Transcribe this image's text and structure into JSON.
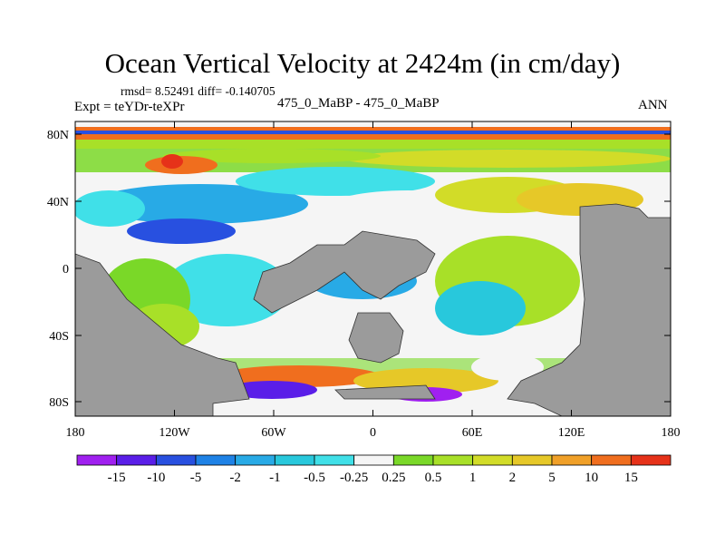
{
  "title": "Ocean Vertical Velocity at 2424m (in cm/day)",
  "stats": "rmsd= 8.52491 diff= -0.140705",
  "expt": "Expt = teYDr-teXPr",
  "center_label": "475_0_MaBP - 475_0_MaBP",
  "season": "ANN",
  "y_ticks": [
    "80N",
    "40N",
    "0",
    "40S",
    "80S"
  ],
  "x_ticks": [
    "180",
    "120W",
    "60W",
    "0",
    "60E",
    "120E",
    "180"
  ],
  "colorbar": {
    "labels": [
      "-15",
      "-10",
      "-5",
      "-2",
      "-1",
      "-0.5",
      "-0.25",
      "0.25",
      "0.5",
      "1",
      "2",
      "5",
      "10",
      "15"
    ],
    "colors": [
      "#a020f0",
      "#5a1ee8",
      "#2850e0",
      "#1e82e6",
      "#28aae6",
      "#28c8dc",
      "#40e0e8",
      "#f5f5f5",
      "#7ad828",
      "#a8e028",
      "#d2dc28",
      "#e6c828",
      "#f0a028",
      "#f06e1e",
      "#e63219"
    ]
  },
  "colors": {
    "land": "#9b9b9b",
    "background": "#ffffff"
  }
}
